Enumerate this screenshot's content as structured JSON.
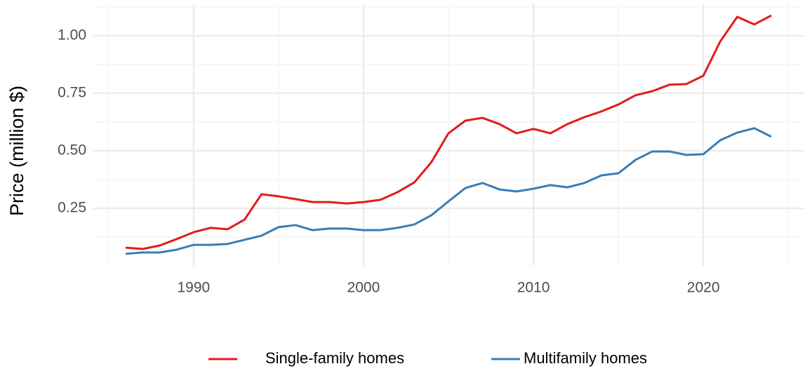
{
  "chart_data": {
    "type": "line",
    "y_label": "Price (million $)",
    "x": [
      1986,
      1987,
      1988,
      1989,
      1990,
      1991,
      1992,
      1993,
      1994,
      1995,
      1996,
      1997,
      1998,
      1999,
      2000,
      2001,
      2002,
      2003,
      2004,
      2005,
      2006,
      2007,
      2008,
      2009,
      2010,
      2011,
      2012,
      2013,
      2014,
      2015,
      2016,
      2017,
      2018,
      2019,
      2020,
      2021,
      2022,
      2023,
      2024
    ],
    "series": [
      {
        "name": "Single-family homes",
        "color": "#e41a1c",
        "values": [
          0.079,
          0.073,
          0.088,
          0.116,
          0.146,
          0.165,
          0.159,
          0.201,
          0.311,
          0.302,
          0.29,
          0.277,
          0.277,
          0.271,
          0.277,
          0.287,
          0.32,
          0.363,
          0.451,
          0.576,
          0.631,
          0.643,
          0.616,
          0.576,
          0.595,
          0.576,
          0.616,
          0.646,
          0.671,
          0.701,
          0.741,
          0.759,
          0.787,
          0.79,
          0.826,
          0.976,
          1.082,
          1.049,
          1.088
        ]
      },
      {
        "name": "Multifamily homes",
        "color": "#377eb8",
        "values": [
          0.052,
          0.058,
          0.058,
          0.07,
          0.091,
          0.091,
          0.095,
          0.113,
          0.131,
          0.168,
          0.177,
          0.155,
          0.162,
          0.162,
          0.155,
          0.155,
          0.165,
          0.18,
          0.22,
          0.28,
          0.338,
          0.36,
          0.332,
          0.323,
          0.335,
          0.351,
          0.341,
          0.36,
          0.393,
          0.402,
          0.46,
          0.497,
          0.497,
          0.482,
          0.485,
          0.546,
          0.579,
          0.598,
          0.561
        ]
      }
    ],
    "xlim": [
      1984.1,
      2025.9
    ],
    "xticks": [
      1990,
      2000,
      2010,
      2020
    ],
    "ylim": [
      0,
      1.14
    ],
    "yticks": [
      0.25,
      {
        "value": 0.5,
        "label": "0.50"
      },
      0.75,
      {
        "value": 1,
        "label": "1.00"
      }
    ],
    "grid": true,
    "legend": "bottom"
  }
}
